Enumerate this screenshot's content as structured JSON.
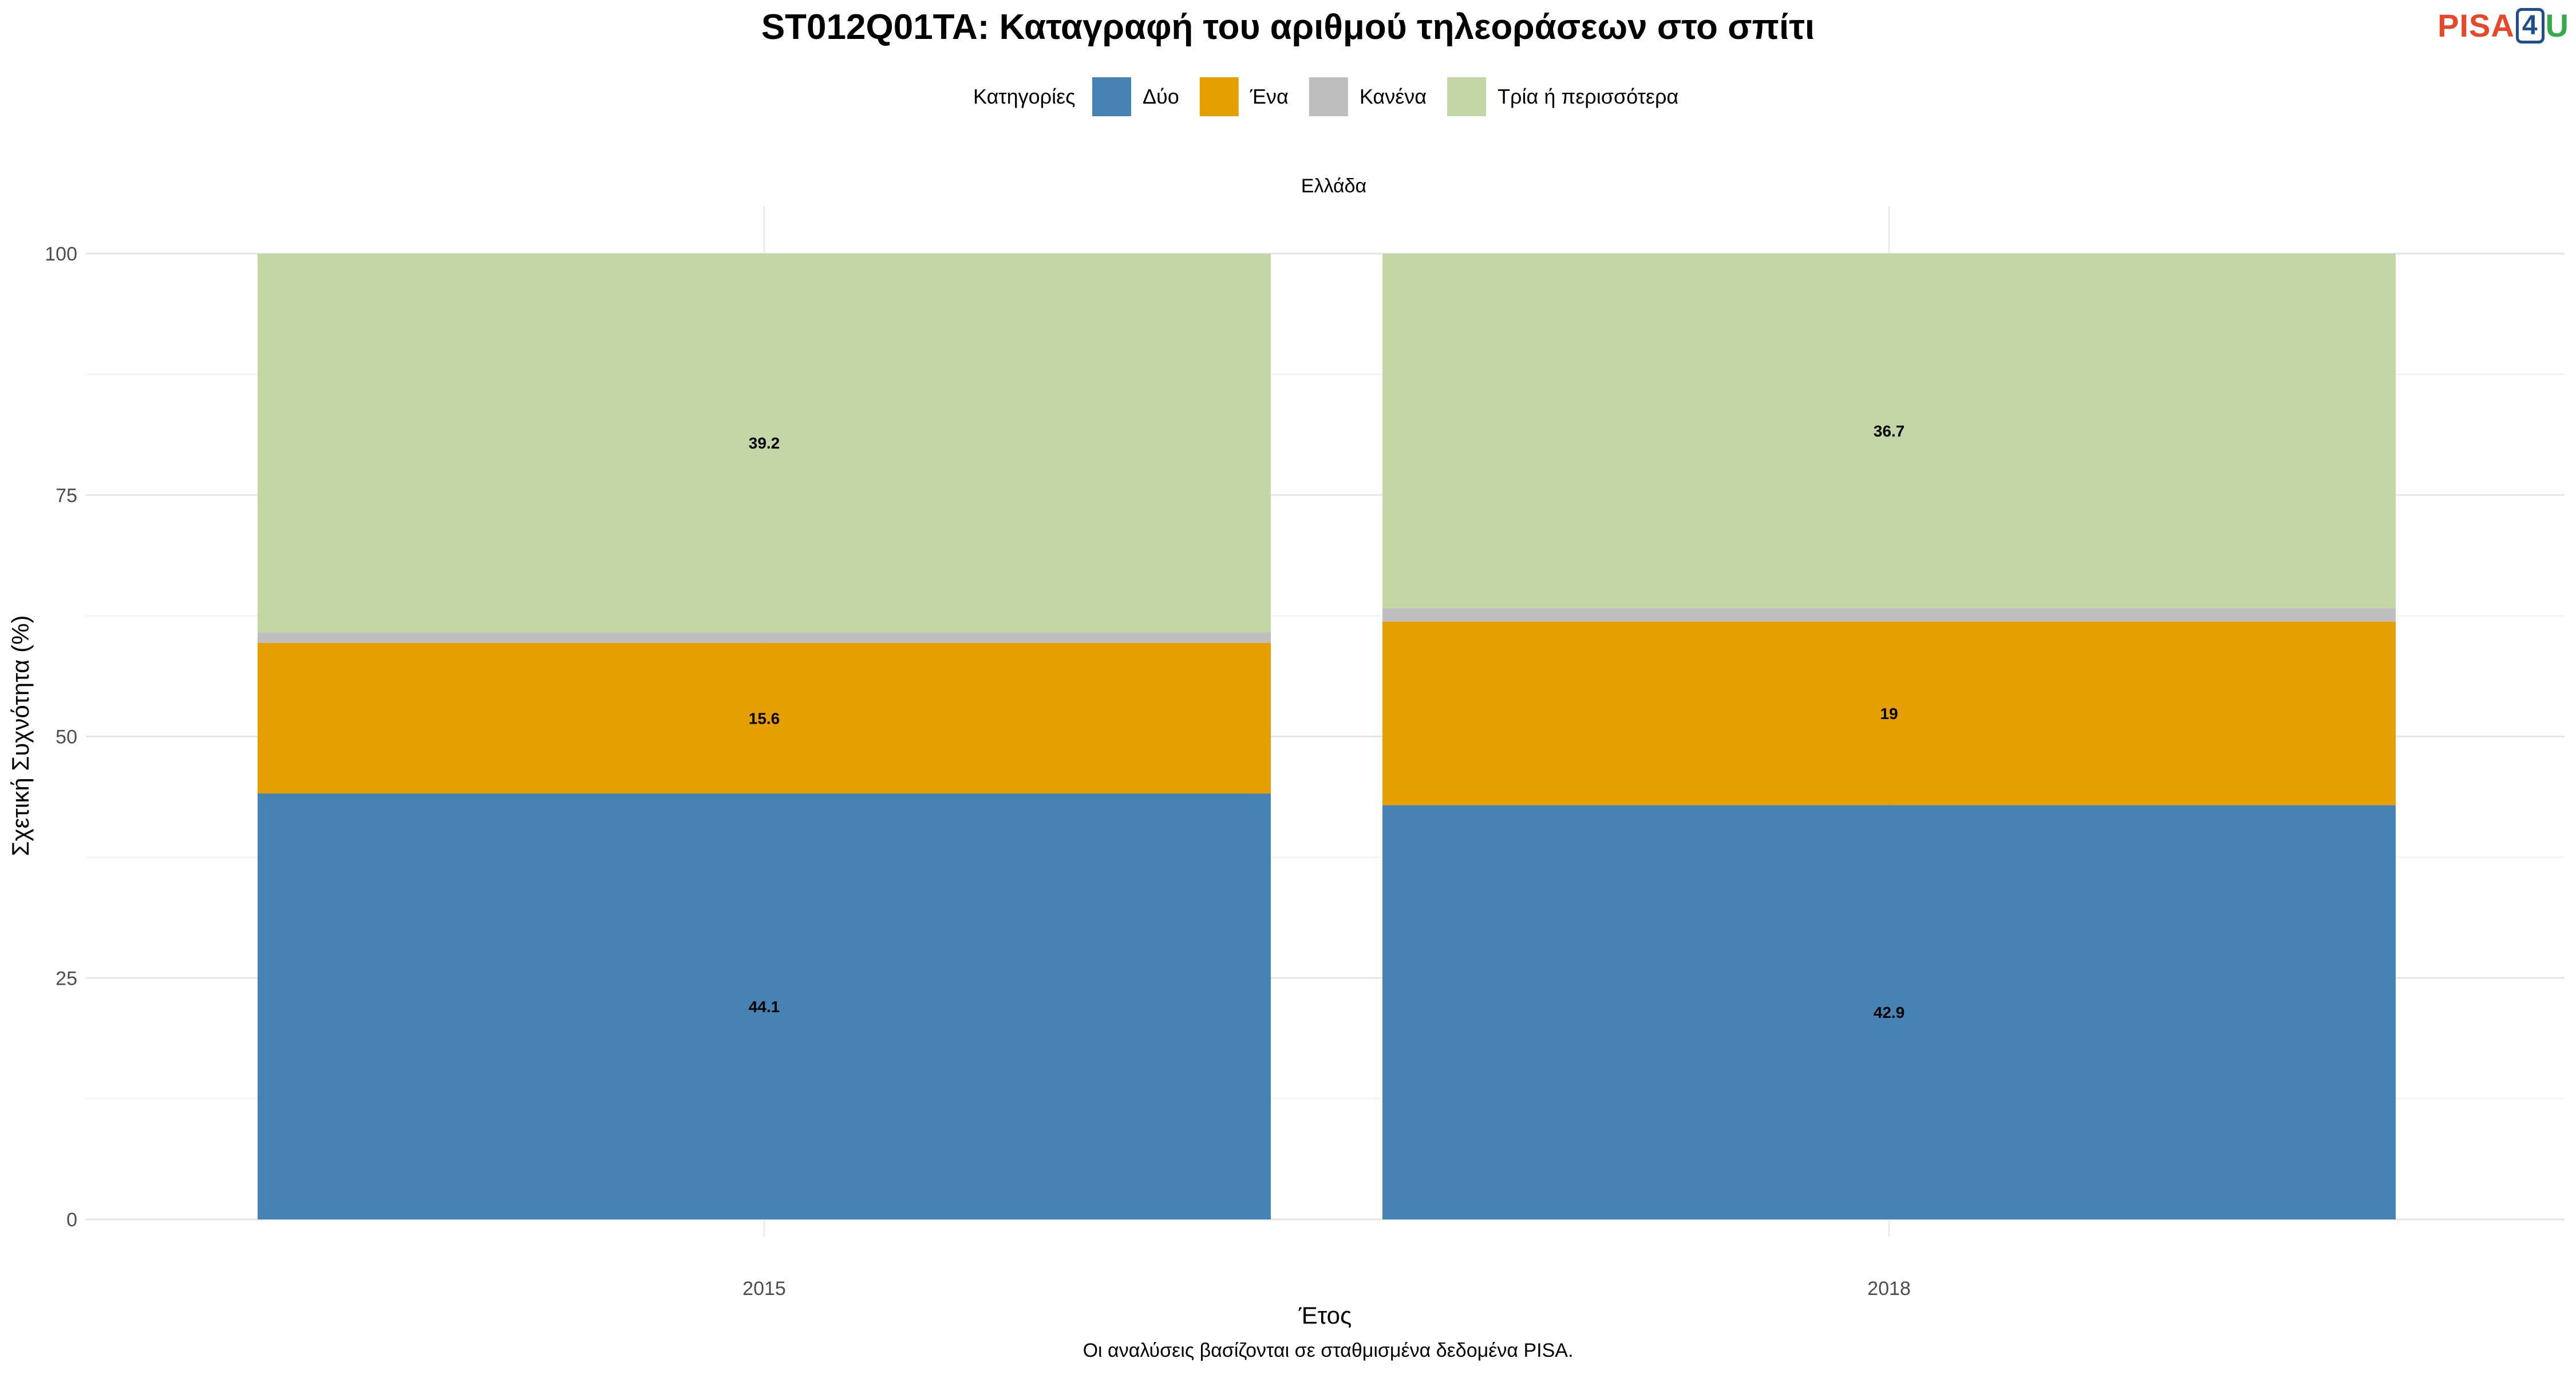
{
  "chart_data": {
    "type": "bar",
    "stacked": true,
    "title": "ST012Q01TA: Καταγραφή του αριθμού τηλεοράσεων στο σπίτι",
    "facet_label": "Ελλάδα",
    "xlabel": "Έτος",
    "ylabel": "Σχετική Συχνότητα (%)",
    "caption": "Οι αναλύσεις βασίζονται σε σταθμισμένα δεδομένα PISA.",
    "legend_title": "Κατηγορίες",
    "legend_position": "top",
    "ylim": [
      0,
      100
    ],
    "yticks": [
      0,
      25,
      50,
      75,
      100
    ],
    "grid": true,
    "categories": [
      "2015",
      "2018"
    ],
    "series": [
      {
        "name": "Δύο",
        "color": "#4682b4",
        "values": [
          44.1,
          42.9
        ],
        "labels": [
          "44.1",
          "42.9"
        ]
      },
      {
        "name": "Ένα",
        "color": "#e69f00",
        "values": [
          15.6,
          19.0
        ],
        "labels": [
          "15.6",
          "19"
        ]
      },
      {
        "name": "Κανένα",
        "color": "#bebebe",
        "values": [
          1.1,
          1.4
        ],
        "labels": [
          "",
          ""
        ]
      },
      {
        "name": "Τρία ή περισσότερα",
        "color": "#c3d7a6",
        "values": [
          39.2,
          36.7
        ],
        "labels": [
          "39.2",
          "36.7"
        ]
      }
    ]
  },
  "logo": {
    "part1": "PISA",
    "part2": "4",
    "part3": "U"
  }
}
